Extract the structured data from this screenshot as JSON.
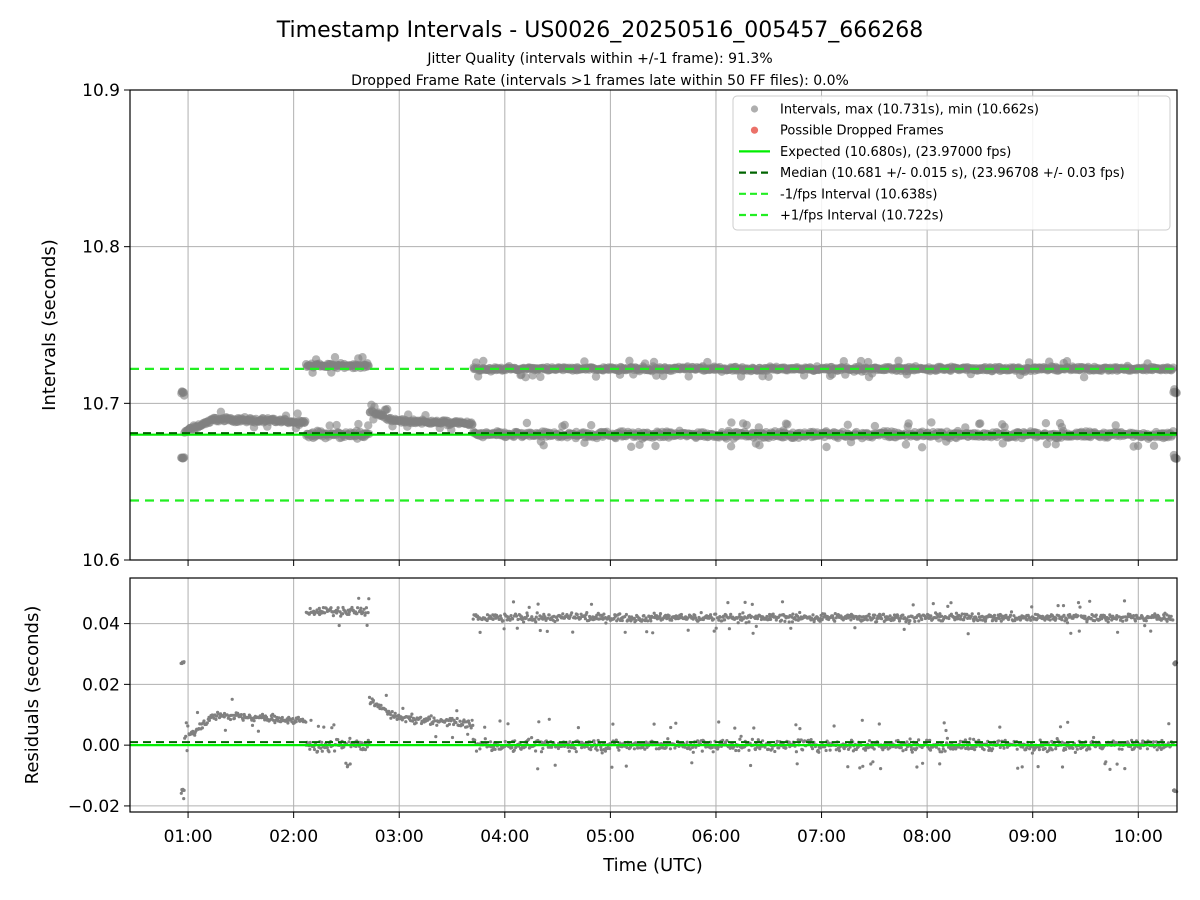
{
  "figure": {
    "title": "Timestamp Intervals - US0026_20250516_005457_666268",
    "subtitle1": "Jitter Quality (intervals within +/-1 frame): 91.3%",
    "subtitle2": "Dropped Frame Rate (intervals >1 frames late within 50 FF files): 0.0%"
  },
  "colors": {
    "points": "#808080",
    "dropped": "#e8584f",
    "expected": "#00ee00",
    "median": "#006400",
    "interval_bounds": "#22ee22",
    "grid": "#b0b0b0"
  },
  "chart_data": [
    {
      "type": "scatter",
      "ylabel": "Intervals (seconds)",
      "xlabel": "",
      "xlim": [
        "00:27",
        "10:22"
      ],
      "ylim": [
        10.6,
        10.9
      ],
      "yticks": [
        10.6,
        10.7,
        10.8,
        10.9
      ],
      "ytick_labels": [
        "10.6",
        "10.7",
        "10.8",
        "10.9"
      ],
      "grid": true,
      "legend": {
        "placement": "top-right",
        "entries": [
          {
            "label": "Intervals, max (10.731s), min (10.662s)",
            "kind": "marker",
            "color": "#a0a0a0"
          },
          {
            "label": "Possible Dropped Frames",
            "kind": "marker",
            "color": "#e8584f"
          },
          {
            "label": "Expected (10.680s), (23.97000 fps)",
            "kind": "solid",
            "color": "#00ee00"
          },
          {
            "label": "Median (10.681 +/- 0.015 s), (23.96708 +/- 0.03 fps)",
            "kind": "dashed",
            "color": "#006400"
          },
          {
            "label": "-1/fps Interval (10.638s)",
            "kind": "dashed",
            "color": "#22ee22"
          },
          {
            "label": "+1/fps Interval (10.722s)",
            "kind": "dashed",
            "color": "#22ee22"
          }
        ]
      },
      "reference_lines": [
        {
          "name": "expected",
          "y": 10.68
        },
        {
          "name": "median",
          "y": 10.681
        },
        {
          "name": "minus_one_frame",
          "y": 10.638
        },
        {
          "name": "plus_one_frame",
          "y": 10.722
        }
      ],
      "series": [
        {
          "name": "Intervals",
          "segments": [
            {
              "x_range": [
                "00:56",
                "00:58"
              ],
              "kind": "low",
              "y": 10.665,
              "jitter": 0.001
            },
            {
              "x_range": [
                "00:56",
                "00:58"
              ],
              "kind": "high",
              "y": 10.707,
              "jitter": 0.001
            },
            {
              "x_range": [
                "00:58",
                "02:07"
              ],
              "kind": "trend",
              "y_start": 10.682,
              "y_peak": 10.69,
              "y_end": 10.688,
              "jitter": 0.002
            },
            {
              "x_range": [
                "02:07",
                "02:43"
              ],
              "kind": "band",
              "y": 10.68,
              "jitter": 0.003
            },
            {
              "x_range": [
                "02:07",
                "02:43"
              ],
              "kind": "band",
              "y": 10.724,
              "jitter": 0.002
            },
            {
              "x_range": [
                "02:43",
                "03:42"
              ],
              "kind": "trend",
              "y_start": 10.695,
              "y_peak": 10.689,
              "y_end": 10.687,
              "jitter": 0.002
            },
            {
              "x_range": [
                "03:42",
                "10:20"
              ],
              "kind": "band",
              "y": 10.68,
              "jitter": 0.003
            },
            {
              "x_range": [
                "03:42",
                "10:20"
              ],
              "kind": "band",
              "y": 10.722,
              "jitter": 0.002
            },
            {
              "x_range": [
                "10:20",
                "10:22"
              ],
              "kind": "low",
              "y": 10.665,
              "jitter": 0.001
            },
            {
              "x_range": [
                "10:20",
                "10:22"
              ],
              "kind": "high",
              "y": 10.707,
              "jitter": 0.001
            }
          ]
        }
      ]
    },
    {
      "type": "scatter",
      "ylabel": "Residuals (seconds)",
      "xlabel": "Time (UTC)",
      "xlim": [
        "00:27",
        "10:22"
      ],
      "ylim": [
        -0.022,
        0.055
      ],
      "yticks": [
        -0.02,
        0.0,
        0.02,
        0.04
      ],
      "ytick_labels": [
        "−0.02",
        "0.00",
        "0.02",
        "0.04"
      ],
      "xticks": [
        "01:00",
        "02:00",
        "03:00",
        "04:00",
        "05:00",
        "06:00",
        "07:00",
        "08:00",
        "09:00",
        "10:00"
      ],
      "grid": true,
      "reference_lines": [
        {
          "name": "expected",
          "y": 0.0
        },
        {
          "name": "median",
          "y": 0.001
        }
      ],
      "series": [
        {
          "name": "Residuals",
          "segments": [
            {
              "x_range": [
                "00:56",
                "00:58"
              ],
              "kind": "low",
              "y": -0.015,
              "jitter": 0.001
            },
            {
              "x_range": [
                "00:56",
                "00:58"
              ],
              "kind": "high",
              "y": 0.027,
              "jitter": 0.001
            },
            {
              "x_range": [
                "00:58",
                "02:07"
              ],
              "kind": "trend",
              "y_start": 0.002,
              "y_peak": 0.01,
              "y_end": 0.008,
              "jitter": 0.002
            },
            {
              "x_range": [
                "02:07",
                "02:43"
              ],
              "kind": "band",
              "y": 0.0,
              "jitter": 0.003
            },
            {
              "x_range": [
                "02:07",
                "02:43"
              ],
              "kind": "band",
              "y": 0.044,
              "jitter": 0.002
            },
            {
              "x_range": [
                "02:43",
                "03:42"
              ],
              "kind": "trend",
              "y_start": 0.015,
              "y_peak": 0.009,
              "y_end": 0.007,
              "jitter": 0.002
            },
            {
              "x_range": [
                "03:42",
                "10:20"
              ],
              "kind": "band",
              "y": 0.0,
              "jitter": 0.003
            },
            {
              "x_range": [
                "03:42",
                "10:20"
              ],
              "kind": "band",
              "y": 0.042,
              "jitter": 0.002
            },
            {
              "x_range": [
                "10:20",
                "10:22"
              ],
              "kind": "low",
              "y": -0.015,
              "jitter": 0.001
            },
            {
              "x_range": [
                "10:20",
                "10:22"
              ],
              "kind": "high",
              "y": 0.027,
              "jitter": 0.001
            }
          ]
        }
      ]
    }
  ]
}
